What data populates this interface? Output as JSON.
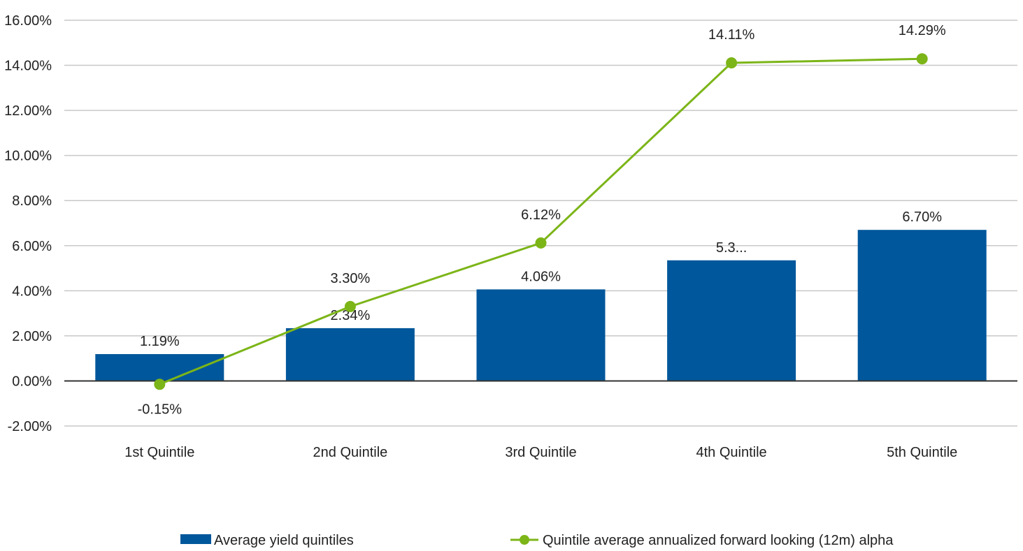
{
  "chart_data": {
    "type": "bar",
    "title": "",
    "xlabel": "",
    "ylabel": "",
    "categories": [
      "1st Quintile",
      "2nd Quintile",
      "3rd Quintile",
      "4th Quintile",
      "5th Quintile"
    ],
    "ylim": [
      -2,
      16
    ],
    "yticks": [
      16,
      14,
      12,
      10,
      8,
      6,
      4,
      2,
      0,
      -2
    ],
    "ytick_labels": [
      "16.00%",
      "14.00%",
      "12.00%",
      "10.00%",
      "8.00%",
      "6.00%",
      "4.00%",
      "2.00%",
      "0.00%",
      "-2.00%"
    ],
    "grid": true,
    "legend_position": "bottom",
    "series": [
      {
        "name": "Average yield quintiles",
        "kind": "bar",
        "color": "#01579b",
        "values": [
          1.19,
          2.34,
          4.06,
          5.35,
          6.7
        ],
        "labels": [
          "1.19%",
          "2.34%",
          "4.06%",
          "5.3...",
          "6.70%"
        ]
      },
      {
        "name": "Quintile average annualized forward looking (12m) alpha",
        "kind": "line",
        "color": "#7cb518",
        "values": [
          -0.15,
          3.3,
          6.12,
          14.11,
          14.29
        ],
        "labels": [
          "-0.15%",
          "3.30%",
          "6.12%",
          "14.11%",
          "14.29%"
        ]
      }
    ]
  }
}
